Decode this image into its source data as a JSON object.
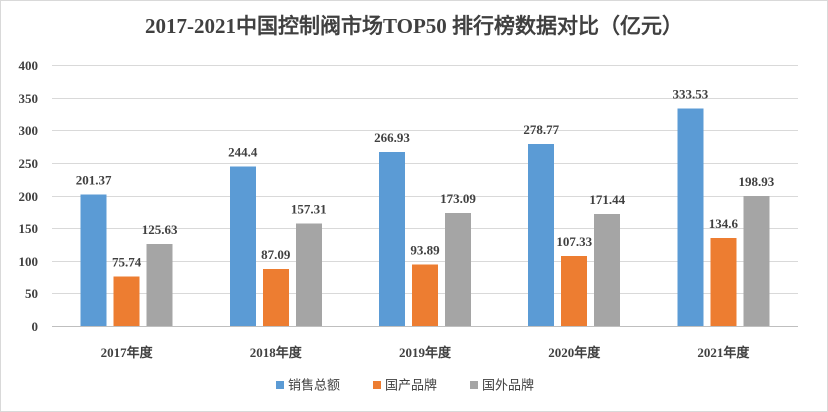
{
  "chart_data": {
    "type": "bar",
    "title": "2017-2021中国控制阀市场TOP50 排行榜数据对比（亿元）",
    "categories": [
      "2017年度",
      "2018年度",
      "2019年度",
      "2020年度",
      "2021年度"
    ],
    "series": [
      {
        "name": "销售总额",
        "color": "#5B9BD5",
        "values": [
          201.37,
          244.4,
          266.93,
          278.77,
          333.53
        ]
      },
      {
        "name": "国产品牌",
        "color": "#ED7D31",
        "values": [
          75.74,
          87.09,
          93.89,
          107.33,
          134.6
        ]
      },
      {
        "name": "国外品牌",
        "color": "#A5A5A5",
        "values": [
          125.63,
          157.31,
          173.09,
          171.44,
          198.93
        ]
      }
    ],
    "ylim": [
      0,
      400
    ],
    "yticks": [
      0,
      50,
      100,
      150,
      200,
      250,
      300,
      350,
      400
    ],
    "grid": true,
    "data_labels": true,
    "legend": "bottom"
  }
}
